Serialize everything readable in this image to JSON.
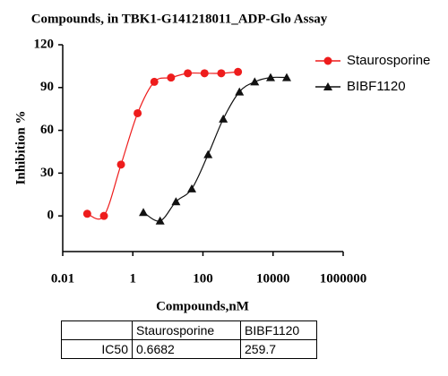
{
  "chart_data": {
    "type": "scatter",
    "title": "Compounds,  in TBK1-G141218011_ADP-Glo Assay",
    "x_label": "Compounds,nM",
    "y_label": "Inhibition %",
    "xscale": "log",
    "xlim": [
      0.01,
      1000000
    ],
    "xticks": [
      0.01,
      1,
      100,
      10000,
      1000000
    ],
    "ylim": [
      -25,
      120
    ],
    "yticks": [
      0,
      30,
      60,
      90,
      120
    ],
    "legend": "top-right",
    "series": [
      {
        "name": "Staurosporine",
        "color": "#ee1c1c",
        "marker": "circle",
        "x": [
          0.05,
          0.15,
          0.46,
          1.37,
          4.1,
          12.3,
          37,
          111,
          333,
          1000
        ],
        "values": [
          1.5,
          0,
          36,
          72,
          94,
          97,
          100,
          100,
          100,
          101
        ]
      },
      {
        "name": "BIBF1120",
        "color": "#111111",
        "marker": "triangle",
        "x": [
          2,
          6,
          17,
          48,
          140,
          380,
          1100,
          3000,
          8500,
          24500
        ],
        "values": [
          2.5,
          -3.5,
          10,
          19,
          43,
          68,
          87,
          94,
          97,
          97
        ]
      }
    ]
  },
  "table": {
    "header": [
      "Staurosporine",
      "BIBF1120"
    ],
    "rows": [
      [
        "IC50",
        "0.6682",
        "259.7"
      ]
    ]
  }
}
